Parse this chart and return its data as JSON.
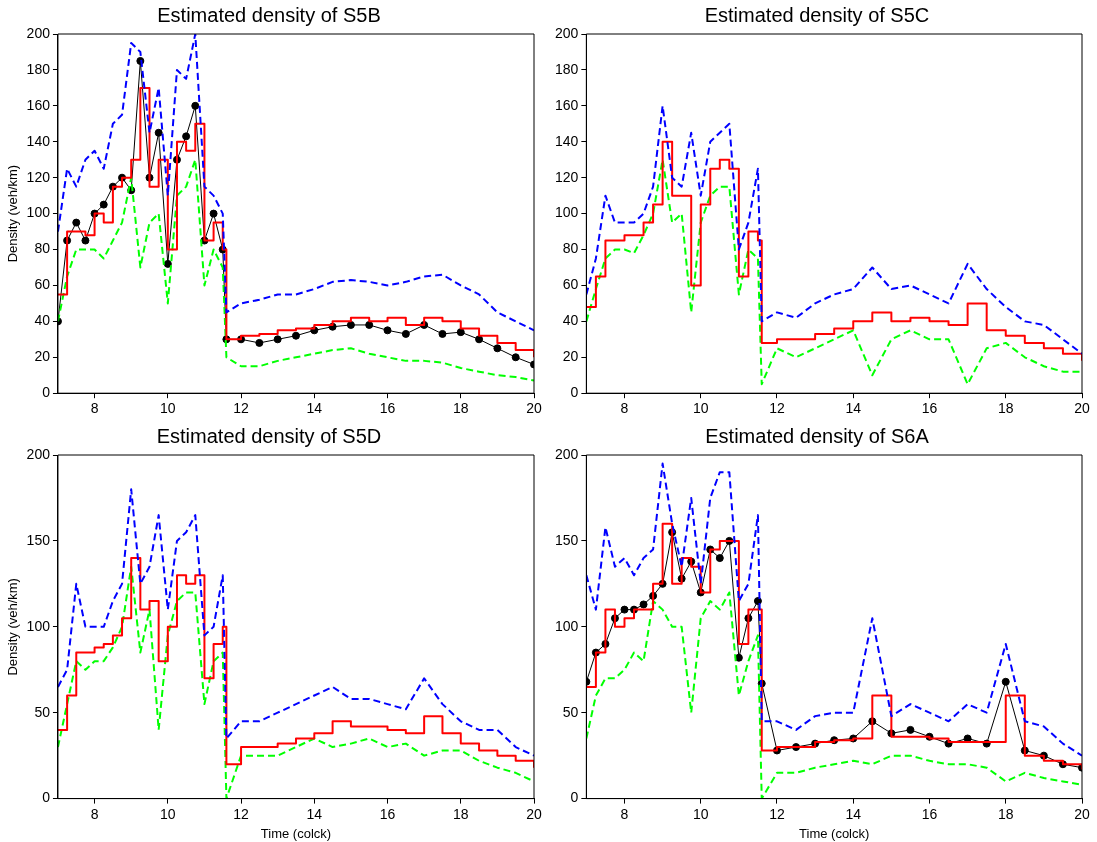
{
  "chart_data": [
    {
      "type": "line",
      "title": "Estimated density of S5B",
      "ylabel": "Density (veh/km)",
      "xlim": [
        7,
        20
      ],
      "xticks": [
        8,
        10,
        12,
        14,
        16,
        18,
        20
      ],
      "ylim": [
        0,
        200
      ],
      "yticks": [
        0,
        20,
        40,
        60,
        80,
        100,
        120,
        140,
        160,
        180,
        200
      ],
      "grid": false,
      "legend": false,
      "x": [
        7,
        7.25,
        7.5,
        7.75,
        8,
        8.25,
        8.5,
        8.75,
        9,
        9.25,
        9.5,
        9.75,
        10,
        10.25,
        10.5,
        10.75,
        11,
        11.25,
        11.5,
        11.6,
        12,
        12.5,
        13,
        13.5,
        14,
        14.5,
        15,
        15.5,
        16,
        16.5,
        17,
        17.5,
        18,
        18.5,
        19,
        19.5,
        20
      ],
      "series": [
        {
          "type": "line",
          "color": "#0000ff",
          "line_style": "dashed",
          "marker": "none",
          "values": [
            90,
            125,
            115,
            130,
            135,
            125,
            150,
            155,
            195,
            190,
            145,
            170,
            110,
            180,
            175,
            200,
            115,
            110,
            100,
            45,
            50,
            52,
            55,
            55,
            58,
            62,
            63,
            62,
            60,
            62,
            65,
            66,
            60,
            55,
            45,
            40,
            35
          ]
        },
        {
          "type": "step",
          "color": "#ff0000",
          "line_style": "solid",
          "marker": "none",
          "values": [
            55,
            90,
            90,
            88,
            100,
            95,
            115,
            120,
            130,
            170,
            115,
            130,
            80,
            140,
            135,
            150,
            85,
            95,
            80,
            30,
            32,
            33,
            35,
            36,
            38,
            40,
            42,
            40,
            42,
            38,
            42,
            40,
            36,
            32,
            28,
            24,
            20
          ]
        },
        {
          "type": "line",
          "color": "#00ff00",
          "line_style": "dashed",
          "marker": "none",
          "values": [
            40,
            65,
            80,
            80,
            80,
            75,
            85,
            95,
            120,
            70,
            95,
            100,
            50,
            110,
            115,
            130,
            60,
            80,
            70,
            20,
            15,
            15,
            18,
            20,
            22,
            24,
            25,
            22,
            20,
            18,
            18,
            17,
            14,
            12,
            10,
            9,
            7
          ]
        },
        {
          "type": "line",
          "color": "#000000",
          "line_style": "solid",
          "marker": "circle",
          "values": [
            40,
            85,
            95,
            85,
            100,
            105,
            115,
            120,
            113,
            185,
            120,
            145,
            72,
            130,
            143,
            160,
            85,
            100,
            80,
            30,
            30,
            28,
            30,
            32,
            35,
            37,
            38,
            38,
            35,
            33,
            38,
            33,
            34,
            30,
            25,
            20,
            16
          ]
        }
      ]
    },
    {
      "type": "line",
      "title": "Estimated density of S5C",
      "xlim": [
        7,
        20
      ],
      "xticks": [
        8,
        10,
        12,
        14,
        16,
        18,
        20
      ],
      "ylim": [
        0,
        200
      ],
      "yticks": [
        0,
        20,
        40,
        60,
        80,
        100,
        120,
        140,
        160,
        180,
        200
      ],
      "grid": false,
      "legend": false,
      "x": [
        7,
        7.25,
        7.5,
        7.75,
        8,
        8.25,
        8.5,
        8.75,
        9,
        9.25,
        9.5,
        9.75,
        10,
        10.25,
        10.5,
        10.75,
        11,
        11.25,
        11.5,
        11.6,
        12,
        12.5,
        13,
        13.5,
        14,
        14.5,
        15,
        15.5,
        16,
        16.5,
        17,
        17.5,
        18,
        18.5,
        19,
        19.5,
        20
      ],
      "series": [
        {
          "type": "line",
          "color": "#0000ff",
          "line_style": "dashed",
          "marker": "none",
          "values": [
            55,
            75,
            110,
            95,
            95,
            95,
            100,
            115,
            160,
            120,
            115,
            145,
            110,
            140,
            145,
            150,
            80,
            95,
            125,
            40,
            45,
            42,
            50,
            55,
            58,
            70,
            58,
            60,
            55,
            50,
            72,
            58,
            48,
            40,
            38,
            30,
            22
          ]
        },
        {
          "type": "step",
          "color": "#ff0000",
          "line_style": "solid",
          "marker": "none",
          "values": [
            48,
            65,
            85,
            85,
            88,
            88,
            95,
            105,
            140,
            110,
            110,
            60,
            105,
            125,
            130,
            125,
            65,
            90,
            85,
            28,
            30,
            30,
            33,
            36,
            40,
            45,
            40,
            42,
            40,
            38,
            50,
            35,
            32,
            28,
            25,
            22,
            18
          ]
        },
        {
          "type": "line",
          "color": "#00ff00",
          "line_style": "dashed",
          "marker": "none",
          "values": [
            40,
            58,
            75,
            80,
            80,
            78,
            88,
            100,
            130,
            95,
            100,
            45,
            95,
            110,
            115,
            115,
            55,
            80,
            75,
            5,
            25,
            20,
            25,
            30,
            35,
            10,
            30,
            35,
            30,
            30,
            5,
            25,
            28,
            20,
            15,
            12,
            12
          ]
        }
      ]
    },
    {
      "type": "line",
      "title": "Estimated density of S5D",
      "xlabel": "Time (colck)",
      "ylabel": "Density (veh/km)",
      "xlim": [
        7,
        20
      ],
      "xticks": [
        8,
        10,
        12,
        14,
        16,
        18,
        20
      ],
      "ylim": [
        0,
        200
      ],
      "yticks": [
        0,
        50,
        100,
        150,
        200
      ],
      "grid": false,
      "legend": false,
      "x": [
        7,
        7.25,
        7.5,
        7.75,
        8,
        8.25,
        8.5,
        8.75,
        9,
        9.25,
        9.5,
        9.75,
        10,
        10.25,
        10.5,
        10.75,
        11,
        11.25,
        11.5,
        11.6,
        12,
        12.5,
        13,
        13.5,
        14,
        14.5,
        15,
        15.5,
        16,
        16.5,
        17,
        17.5,
        18,
        18.5,
        19,
        19.5,
        20
      ],
      "series": [
        {
          "type": "line",
          "color": "#0000ff",
          "line_style": "dashed",
          "marker": "none",
          "values": [
            65,
            75,
            125,
            100,
            100,
            100,
            115,
            125,
            180,
            125,
            135,
            165,
            110,
            150,
            155,
            165,
            95,
            100,
            130,
            35,
            45,
            45,
            50,
            55,
            60,
            65,
            58,
            58,
            55,
            52,
            70,
            55,
            45,
            40,
            40,
            30,
            25
          ]
        },
        {
          "type": "step",
          "color": "#ff0000",
          "line_style": "solid",
          "marker": "none",
          "values": [
            40,
            60,
            85,
            85,
            88,
            90,
            95,
            105,
            140,
            110,
            115,
            80,
            100,
            130,
            125,
            130,
            70,
            90,
            100,
            20,
            30,
            30,
            32,
            35,
            38,
            45,
            42,
            42,
            40,
            38,
            48,
            38,
            32,
            28,
            25,
            22,
            18
          ]
        },
        {
          "type": "line",
          "color": "#00ff00",
          "line_style": "dashed",
          "marker": "none",
          "values": [
            30,
            55,
            80,
            75,
            80,
            80,
            88,
            100,
            135,
            85,
            110,
            40,
            95,
            115,
            120,
            120,
            55,
            80,
            85,
            0,
            25,
            25,
            25,
            30,
            35,
            30,
            32,
            35,
            30,
            32,
            25,
            28,
            28,
            22,
            18,
            15,
            10
          ]
        }
      ]
    },
    {
      "type": "line",
      "title": "Estimated density of S6A",
      "xlabel": "Time (colck)",
      "xlim": [
        7,
        20
      ],
      "xticks": [
        8,
        10,
        12,
        14,
        16,
        18,
        20
      ],
      "ylim": [
        0,
        200
      ],
      "yticks": [
        0,
        50,
        100,
        150,
        200
      ],
      "grid": false,
      "legend": false,
      "x": [
        7,
        7.25,
        7.5,
        7.75,
        8,
        8.25,
        8.5,
        8.75,
        9,
        9.25,
        9.5,
        9.75,
        10,
        10.25,
        10.5,
        10.75,
        11,
        11.25,
        11.5,
        11.6,
        12,
        12.5,
        13,
        13.5,
        14,
        14.5,
        15,
        15.5,
        16,
        16.5,
        17,
        17.5,
        18,
        18.5,
        19,
        19.5,
        20
      ],
      "series": [
        {
          "type": "line",
          "color": "#0000ff",
          "line_style": "dashed",
          "marker": "none",
          "values": [
            130,
            110,
            158,
            135,
            140,
            130,
            140,
            145,
            195,
            160,
            135,
            175,
            125,
            175,
            190,
            190,
            115,
            125,
            165,
            45,
            45,
            40,
            48,
            50,
            50,
            105,
            48,
            55,
            50,
            45,
            55,
            50,
            90,
            45,
            42,
            32,
            25
          ]
        },
        {
          "type": "step",
          "color": "#ff0000",
          "line_style": "solid",
          "marker": "none",
          "values": [
            65,
            85,
            110,
            100,
            105,
            110,
            110,
            125,
            160,
            125,
            140,
            135,
            120,
            145,
            150,
            150,
            90,
            110,
            110,
            28,
            30,
            30,
            33,
            34,
            35,
            60,
            36,
            36,
            35,
            33,
            33,
            33,
            60,
            25,
            22,
            20,
            17
          ]
        },
        {
          "type": "line",
          "color": "#00ff00",
          "line_style": "dashed",
          "marker": "none",
          "values": [
            35,
            60,
            70,
            70,
            75,
            85,
            80,
            115,
            110,
            100,
            100,
            50,
            105,
            115,
            110,
            120,
            60,
            80,
            95,
            0,
            15,
            15,
            18,
            20,
            22,
            20,
            25,
            25,
            22,
            20,
            20,
            18,
            10,
            15,
            12,
            10,
            8
          ]
        },
        {
          "type": "line",
          "color": "#000000",
          "line_style": "solid",
          "marker": "circle",
          "values": [
            68,
            85,
            90,
            105,
            110,
            110,
            113,
            118,
            125,
            155,
            128,
            138,
            120,
            145,
            140,
            150,
            82,
            105,
            115,
            67,
            28,
            30,
            32,
            34,
            35,
            45,
            38,
            40,
            36,
            32,
            35,
            32,
            68,
            28,
            25,
            20,
            18
          ]
        }
      ]
    }
  ]
}
